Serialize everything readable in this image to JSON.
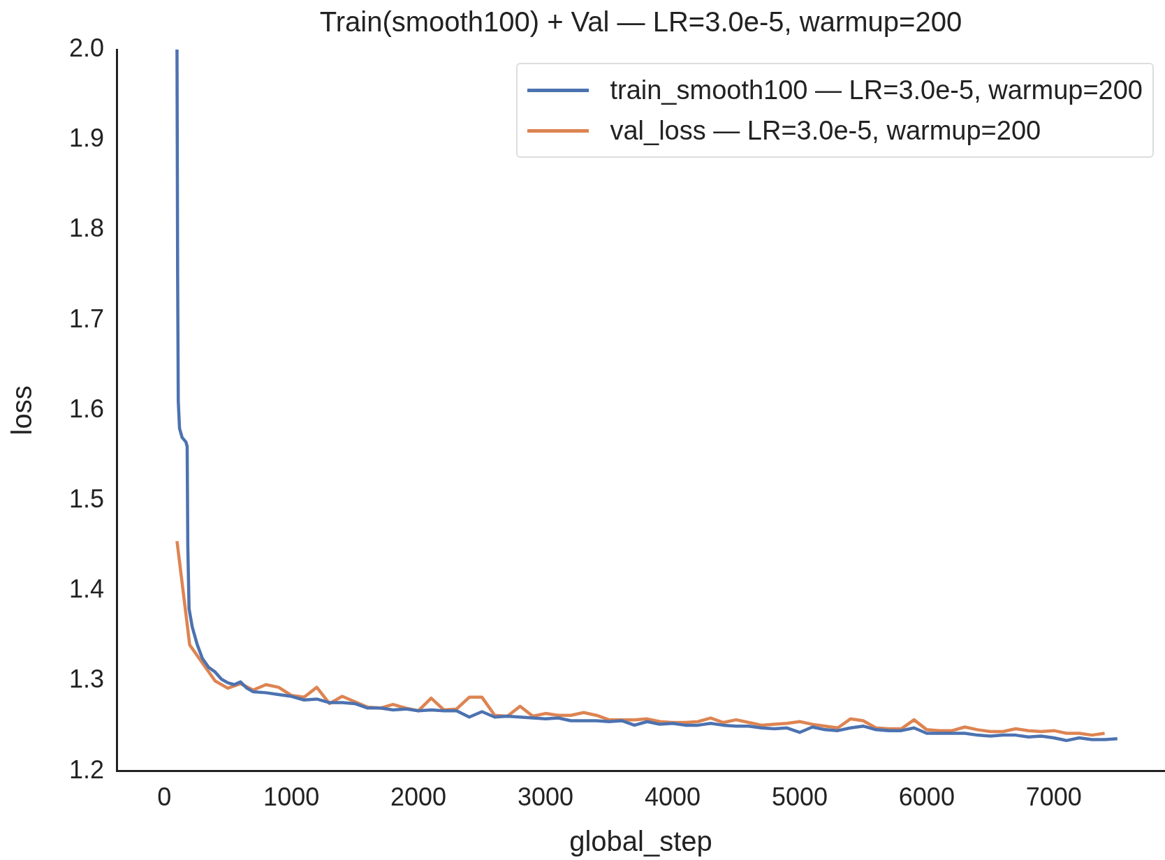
{
  "chart_data": {
    "type": "line",
    "title": "Train(smooth100) + Val — LR=3.0e-5, warmup=200",
    "xlabel": "global_step",
    "ylabel": "loss",
    "xlim": [
      -375,
      7875
    ],
    "xticks": [
      0,
      1000,
      2000,
      3000,
      4000,
      5000,
      6000,
      7000
    ],
    "ylim": [
      1.2,
      2.0
    ],
    "yticks": [
      1.2,
      1.3,
      1.4,
      1.5,
      1.6,
      1.7,
      1.8,
      1.9,
      {
        "value": 2,
        "label": "2.0"
      }
    ],
    "grid": false,
    "legend": "top right",
    "marker": "none",
    "line_style": "solid",
    "series": [
      {
        "name": "train_smooth100 — LR=3.0e-5, warmup=200",
        "color": "#4c72b0",
        "x": [
          100,
          105,
          110,
          120,
          140,
          170,
          180,
          185,
          195,
          220,
          260,
          300,
          350,
          400,
          450,
          500,
          550,
          600,
          650,
          700,
          800,
          900,
          1000,
          1100,
          1200,
          1300,
          1400,
          1500,
          1600,
          1700,
          1800,
          1900,
          2000,
          2100,
          2200,
          2300,
          2400,
          2500,
          2600,
          2700,
          2800,
          2900,
          3000,
          3100,
          3200,
          3300,
          3400,
          3500,
          3600,
          3700,
          3800,
          3900,
          4000,
          4100,
          4200,
          4300,
          4400,
          4500,
          4600,
          4700,
          4800,
          4900,
          5000,
          5100,
          5200,
          5300,
          5400,
          5500,
          5600,
          5700,
          5800,
          5900,
          6000,
          6100,
          6200,
          6300,
          6400,
          6500,
          6600,
          6700,
          6800,
          6900,
          7000,
          7100,
          7200,
          7300,
          7400,
          7500
        ],
        "values": [
          2.0,
          1.75,
          1.61,
          1.58,
          1.57,
          1.565,
          1.56,
          1.45,
          1.38,
          1.36,
          1.34,
          1.325,
          1.315,
          1.31,
          1.302,
          1.298,
          1.296,
          1.299,
          1.292,
          1.288,
          1.287,
          1.285,
          1.283,
          1.279,
          1.28,
          1.276,
          1.276,
          1.275,
          1.27,
          1.27,
          1.268,
          1.269,
          1.267,
          1.268,
          1.267,
          1.267,
          1.26,
          1.266,
          1.26,
          1.261,
          1.26,
          1.259,
          1.258,
          1.259,
          1.256,
          1.256,
          1.256,
          1.255,
          1.256,
          1.251,
          1.255,
          1.252,
          1.253,
          1.251,
          1.251,
          1.253,
          1.251,
          1.25,
          1.25,
          1.248,
          1.247,
          1.248,
          1.243,
          1.249,
          1.246,
          1.245,
          1.248,
          1.25,
          1.246,
          1.245,
          1.245,
          1.248,
          1.242,
          1.242,
          1.242,
          1.242,
          1.24,
          1.239,
          1.24,
          1.24,
          1.238,
          1.239,
          1.237,
          1.234,
          1.237,
          1.235,
          1.235,
          1.236
        ]
      },
      {
        "name": "val_loss — LR=3.0e-5, warmup=200",
        "color": "#dd8452",
        "x": [
          100,
          200,
          300,
          400,
          500,
          600,
          700,
          800,
          900,
          1000,
          1100,
          1200,
          1300,
          1400,
          1500,
          1600,
          1700,
          1800,
          1900,
          2000,
          2100,
          2200,
          2300,
          2400,
          2500,
          2600,
          2700,
          2800,
          2900,
          3000,
          3100,
          3200,
          3300,
          3400,
          3500,
          3600,
          3700,
          3800,
          3900,
          4000,
          4100,
          4200,
          4300,
          4400,
          4500,
          4600,
          4700,
          4800,
          4900,
          5000,
          5100,
          5200,
          5300,
          5400,
          5500,
          5600,
          5700,
          5800,
          5900,
          6000,
          6100,
          6200,
          6300,
          6400,
          6500,
          6600,
          6700,
          6800,
          6900,
          7000,
          7100,
          7200,
          7300,
          7400
        ],
        "values": [
          1.455,
          1.34,
          1.32,
          1.3,
          1.292,
          1.297,
          1.29,
          1.296,
          1.293,
          1.284,
          1.282,
          1.293,
          1.275,
          1.283,
          1.277,
          1.271,
          1.27,
          1.274,
          1.27,
          1.267,
          1.281,
          1.268,
          1.269,
          1.282,
          1.282,
          1.262,
          1.261,
          1.272,
          1.261,
          1.264,
          1.262,
          1.262,
          1.265,
          1.262,
          1.257,
          1.257,
          1.257,
          1.258,
          1.255,
          1.254,
          1.254,
          1.255,
          1.259,
          1.254,
          1.257,
          1.254,
          1.251,
          1.252,
          1.253,
          1.255,
          1.252,
          1.25,
          1.248,
          1.258,
          1.256,
          1.248,
          1.247,
          1.247,
          1.257,
          1.246,
          1.245,
          1.245,
          1.249,
          1.246,
          1.244,
          1.244,
          1.247,
          1.245,
          1.244,
          1.245,
          1.242,
          1.242,
          1.24,
          1.242
        ]
      }
    ]
  }
}
